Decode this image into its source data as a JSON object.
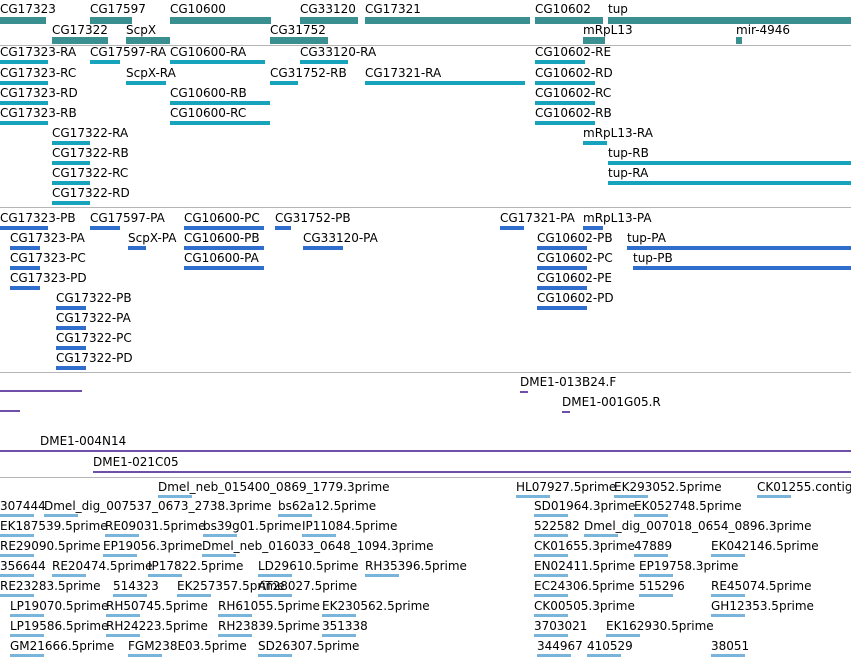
{
  "colors": {
    "gene": "#3a8f91",
    "transcript_a": "#16a3bb",
    "transcript_b": "#2f6ecd",
    "probe": "#6f4fa8",
    "est": "#79b4da",
    "separator": "#b5b5b5"
  },
  "gene_track": [
    "CG17323",
    "CG17597",
    "CG10600",
    "CG33120",
    "CG17321",
    "CG10602",
    "tup",
    "CG17322",
    "ScpX",
    "CG31752",
    "mRpL13",
    "mir-4946"
  ],
  "transcripts_a": [
    "CG17323-RA",
    "CG17597-RA",
    "CG10600-RA",
    "CG33120-RA",
    "CG10602-RE",
    "CG17323-RC",
    "ScpX-RA",
    "CG31752-RB",
    "CG17321-RA",
    "CG10602-RD",
    "CG17323-RD",
    "CG10600-RB",
    "CG10602-RC",
    "CG17323-RB",
    "CG10600-RC",
    "CG10602-RB",
    "CG17322-RA",
    "mRpL13-RA",
    "CG17322-RB",
    "tup-RB",
    "CG17322-RC",
    "tup-RA",
    "CG17322-RD"
  ],
  "transcripts_b": [
    "CG17323-PB",
    "CG17597-PA",
    "CG10600-PC",
    "CG31752-PB",
    "CG17321-PA",
    "mRpL13-PA",
    "CG17323-PA",
    "ScpX-PA",
    "CG10600-PB",
    "CG33120-PA",
    "CG10602-PB",
    "tup-PA",
    "CG17323-PC",
    "CG10600-PA",
    "CG10602-PC",
    "tup-PB",
    "CG17323-PD",
    "CG10602-PE",
    "CG10602-PD",
    "CG17322-PB",
    "CG17322-PA",
    "CG17322-PC",
    "CG17322-PD"
  ],
  "probes": [
    "DME1-013B24.F",
    "DME1-001G05.R",
    "DME1-004N14",
    "DME1-021C05"
  ],
  "ests": [
    "Dmel_neb_015400_0869_1779.3prime",
    "HL07927.5prime",
    "EK293052.5prime",
    "CK01255.contig",
    "307444",
    "Dmel_dig_007537_0673_2738.3prime",
    "bs62a12.5prime",
    "SD01964.3prime",
    "EK052748.5prime",
    "EK187539.5prime",
    "RE09031.5prime",
    "bs39g01.5prime",
    "IP11084.5prime",
    "522582",
    "Dmel_dig_007018_0654_0896.3prime",
    "RE29090.5prime",
    "EP19056.3prime",
    "Dmel_neb_016033_0648_1094.3prime",
    "CK01655.3prime",
    "47889",
    "EK042146.5prime",
    "356644",
    "RE20474.5prime",
    "IP17822.5prime",
    "LD29610.5prime",
    "RH35396.5prime",
    "EN02411.5prime",
    "EP19758.3prime",
    "RE23283.5prime",
    "514323",
    "EK257357.5prime",
    "AT28027.5prime",
    "EC24306.5prime",
    "515296",
    "RE45074.5prime",
    "LP19070.5prime",
    "RH50745.5prime",
    "RH61055.5prime",
    "EK230562.5prime",
    "CK00505.3prime",
    "GH12353.5prime",
    "LP19586.5prime",
    "RH24223.5prime",
    "RH23839.5prime",
    "351338",
    "3703021",
    "EK162930.5prime",
    "GM21666.5prime",
    "FGM238E03.5prime",
    "SD26307.5prime",
    "344967",
    "410529",
    "38051"
  ]
}
